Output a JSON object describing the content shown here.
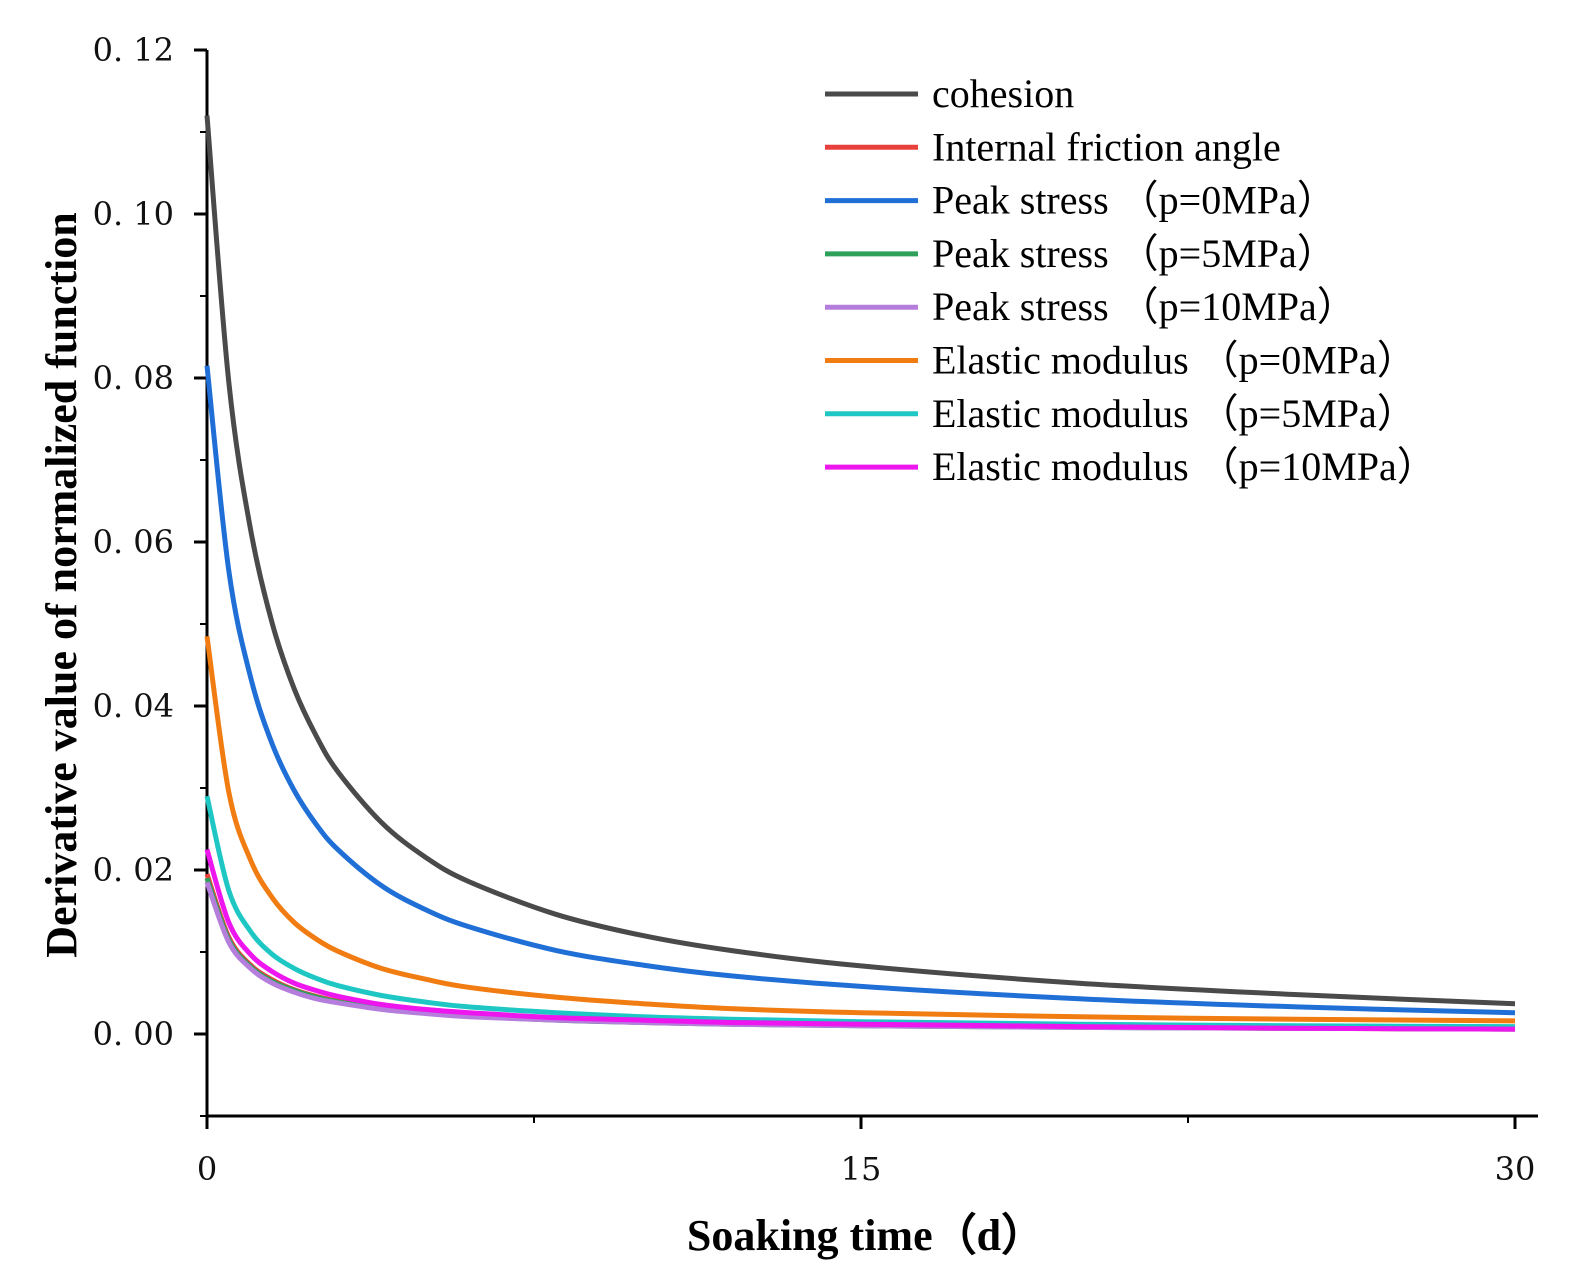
{
  "chart_data": {
    "type": "line",
    "title": "",
    "xlabel": "Soaking time（d）",
    "ylabel": "Derivative value of normalized function",
    "xlim": [
      0,
      30
    ],
    "ylim": [
      -0.01,
      0.12
    ],
    "xticks": [
      0,
      15,
      30
    ],
    "xtick_labels": [
      "0",
      "15",
      "30"
    ],
    "yticks": [
      0.0,
      0.02,
      0.04,
      0.06,
      0.08,
      0.1,
      0.12
    ],
    "ytick_labels": [
      "0. 00",
      "0. 02",
      "0. 04",
      "0. 06",
      "0. 08",
      "0. 10",
      "0. 12"
    ],
    "grid": false,
    "legend_position": "top-right",
    "x": [
      0,
      0.5,
      1,
      1.5,
      2,
      2.5,
      3,
      4,
      5,
      6,
      8,
      10,
      12,
      15,
      20,
      25,
      30
    ],
    "series": [
      {
        "name": "cohesion",
        "color": "#4a4a4a",
        "values": [
          0.112,
          0.0795,
          0.0615,
          0.05,
          0.0421,
          0.0364,
          0.032,
          0.0258,
          0.0216,
          0.0186,
          0.0146,
          0.012,
          0.0102,
          0.0083,
          0.0062,
          0.0048,
          0.0037
        ]
      },
      {
        "name": "Internal friction angle",
        "color": "#e8413c",
        "values": [
          0.0195,
          0.0118,
          0.0084,
          0.0066,
          0.0054,
          0.0046,
          0.004,
          0.0032,
          0.0026,
          0.0022,
          0.0018,
          0.0015,
          0.0013,
          0.0011,
          0.0009,
          0.0007,
          0.0006
        ]
      },
      {
        "name": "Peak stress （p=0MPa）",
        "color": "#1f6fd6",
        "values": [
          0.0815,
          0.0565,
          0.0435,
          0.0353,
          0.0297,
          0.0256,
          0.0225,
          0.0181,
          0.0152,
          0.0131,
          0.0102,
          0.0084,
          0.0071,
          0.0058,
          0.0043,
          0.0033,
          0.0026
        ]
      },
      {
        "name": "Peak stress （p=5MPa）",
        "color": "#2fa05a",
        "values": [
          0.019,
          0.0115,
          0.0082,
          0.0064,
          0.0053,
          0.0045,
          0.0039,
          0.0031,
          0.0026,
          0.0022,
          0.0017,
          0.0014,
          0.0012,
          0.001,
          0.0008,
          0.0007,
          0.0006
        ]
      },
      {
        "name": "Peak stress （p=10MPa）",
        "color": "#b57edc",
        "values": [
          0.0185,
          0.0112,
          0.008,
          0.0062,
          0.0051,
          0.0043,
          0.0038,
          0.003,
          0.0025,
          0.0021,
          0.0017,
          0.0014,
          0.0012,
          0.001,
          0.0008,
          0.0007,
          0.0006
        ]
      },
      {
        "name": "Elastic modulus （p=0MPa）",
        "color": "#f07c12",
        "values": [
          0.0485,
          0.0295,
          0.0212,
          0.0166,
          0.0136,
          0.0116,
          0.0101,
          0.008,
          0.0067,
          0.0057,
          0.0045,
          0.0037,
          0.0031,
          0.0026,
          0.0021,
          0.0018,
          0.0016
        ]
      },
      {
        "name": "Elastic modulus （p=5MPa）",
        "color": "#1fc7c4",
        "values": [
          0.029,
          0.0175,
          0.0125,
          0.0097,
          0.008,
          0.0068,
          0.0059,
          0.0047,
          0.0039,
          0.0033,
          0.0026,
          0.0021,
          0.0018,
          0.0015,
          0.0012,
          0.001,
          0.0009
        ]
      },
      {
        "name": "Elastic modulus （p=10MPa）",
        "color": "#ee16ee",
        "values": [
          0.0225,
          0.0136,
          0.0097,
          0.0076,
          0.0062,
          0.0053,
          0.0046,
          0.0036,
          0.003,
          0.0026,
          0.002,
          0.0017,
          0.0014,
          0.0012,
          0.0009,
          0.0007,
          0.0006
        ]
      }
    ]
  }
}
